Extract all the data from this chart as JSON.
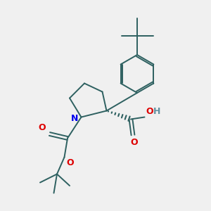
{
  "bg_color": "#f0f0f0",
  "bond_color": "#2d6060",
  "nitrogen_color": "#0000ee",
  "oxygen_color": "#dd0000",
  "h_color": "#6090a0",
  "line_width": 1.4,
  "fig_width": 3.0,
  "fig_height": 3.0,
  "dpi": 100,
  "xlim": [
    0,
    10
  ],
  "ylim": [
    0,
    10
  ]
}
